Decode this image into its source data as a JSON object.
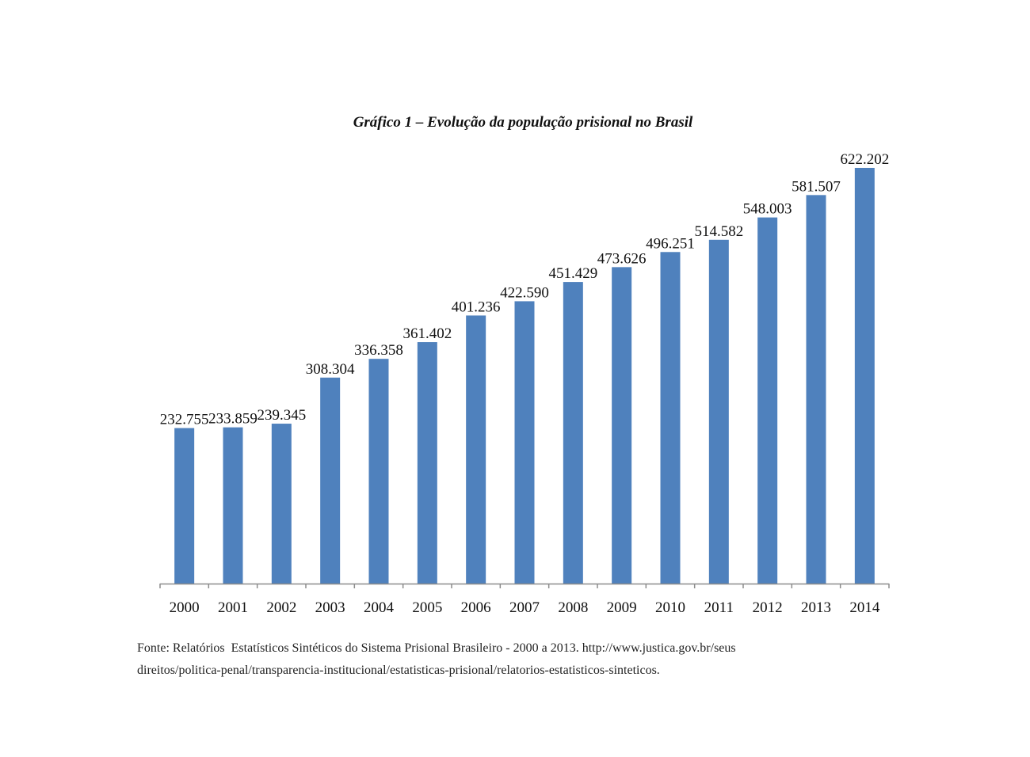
{
  "chart_data": {
    "type": "bar",
    "title": "Gráfico 1 – Evolução da população prisional no Brasil",
    "xlabel": "",
    "ylabel": "",
    "ylim": [
      0,
      622202
    ],
    "grid": false,
    "legend": "none",
    "bar_color": "#4f81bd",
    "categories": [
      "2000",
      "2001",
      "2002",
      "2003",
      "2004",
      "2005",
      "2006",
      "2007",
      "2008",
      "2009",
      "2010",
      "2011",
      "2012",
      "2013",
      "2014"
    ],
    "values": [
      232755,
      233859,
      239345,
      308304,
      336358,
      361402,
      401236,
      422590,
      451429,
      473626,
      496251,
      514582,
      548003,
      581507,
      622202
    ],
    "value_labels": [
      "232.755",
      "233.859",
      "239.345",
      "308.304",
      "336.358",
      "361.402",
      "401.236",
      "422.590",
      "451.429",
      "473.626",
      "496.251",
      "514.582",
      "548.003",
      "581.507",
      "622.202"
    ]
  },
  "source": {
    "line1": "Fonte: Relatórios  Estatísticos Sintéticos do Sistema Prisional Brasileiro - 2000 a 2013. http://www.justica.gov.br/seus",
    "line2": "direitos/politica-penal/transparencia-institucional/estatisticas-prisional/relatorios-estatisticos-sinteticos."
  }
}
